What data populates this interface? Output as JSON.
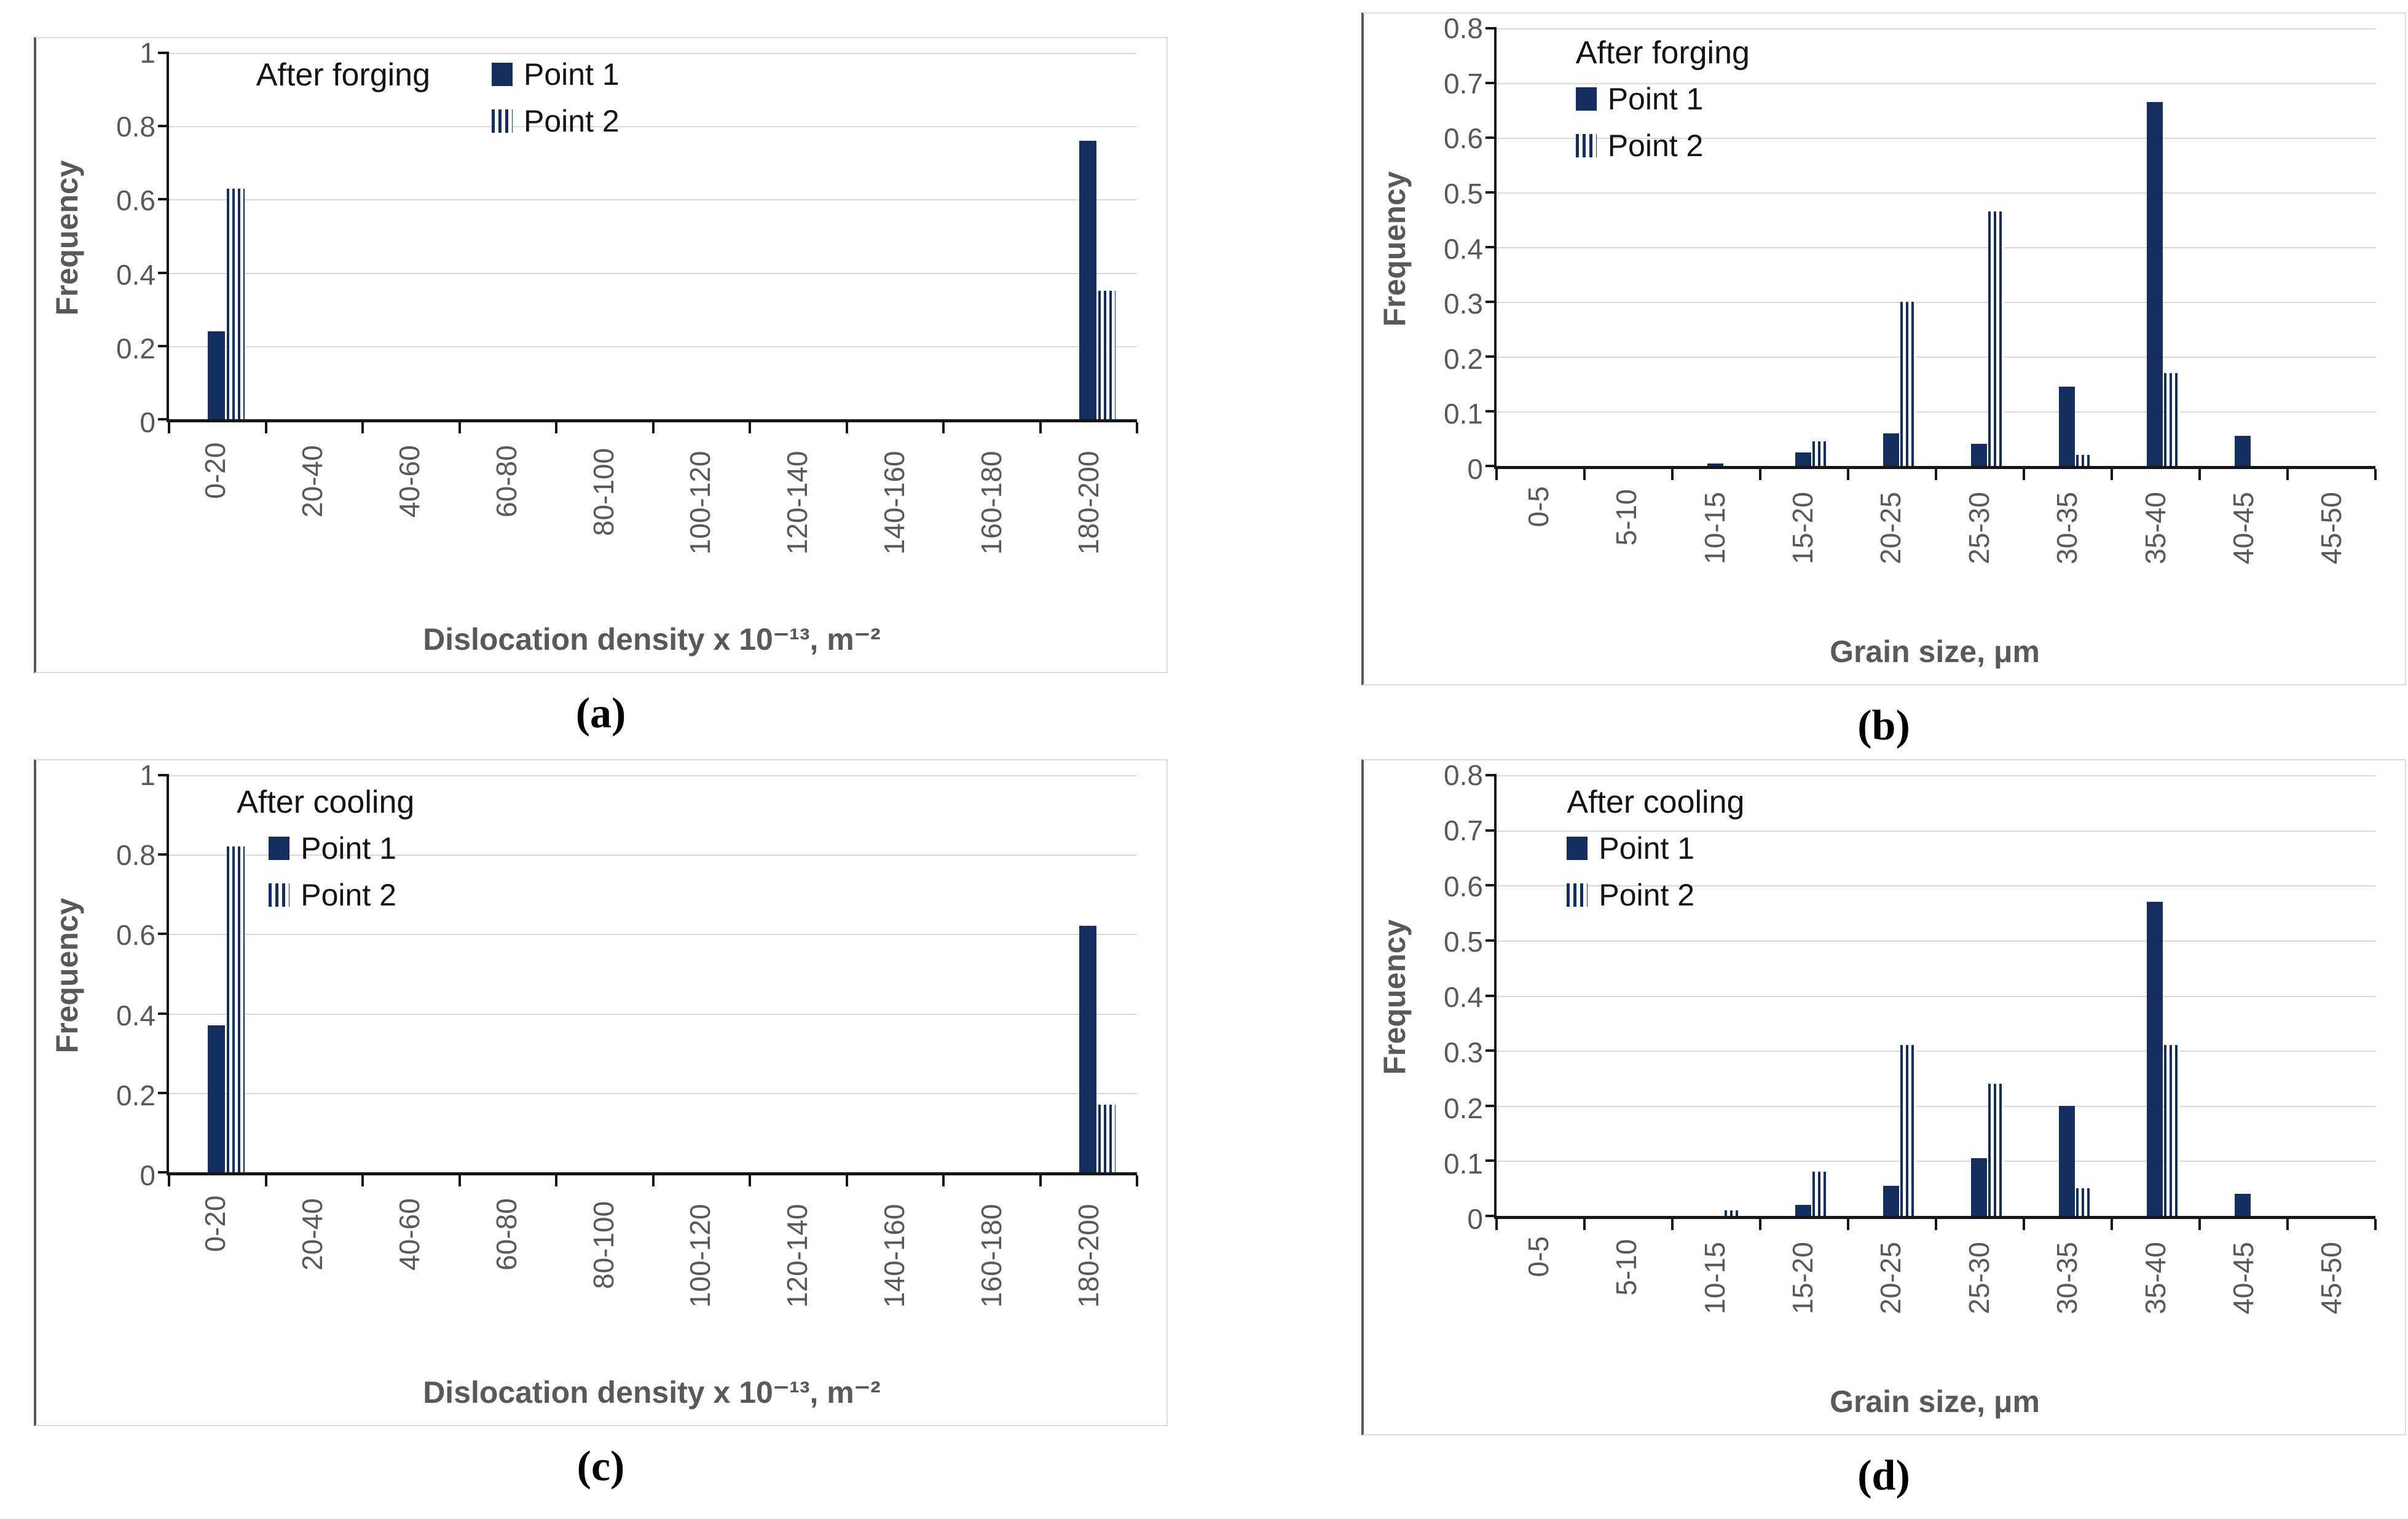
{
  "figure": {
    "background": "#ffffff",
    "y_axis_title": "Frequency"
  },
  "colors": {
    "bar_fill": "#132e5f",
    "gridline": "#d9d9d9",
    "axis_line": "#161616",
    "tick_label": "#595959",
    "axis_title": "#595959",
    "legend_text": "#141414",
    "caption_text": "#000000"
  },
  "chart_data": [
    {
      "type": "bar",
      "panel": "a",
      "caption": "(a)",
      "title": "After forging",
      "ylabel": "Frequency",
      "xlabel": "Dislocation density x 10⁻¹³, m⁻²",
      "ylim": [
        0,
        1
      ],
      "yticks": [
        "1",
        "0.8",
        "0.6",
        "0.4",
        "0.2",
        "0"
      ],
      "grid": "horizontal",
      "legend_position": "top-inline",
      "categories": [
        "0-20",
        "20-40",
        "40-60",
        "60-80",
        "80-100",
        "100-120",
        "120-140",
        "140-160",
        "160-180",
        "180-200"
      ],
      "series": [
        {
          "name": "Point 1",
          "style": "solid",
          "values": [
            0.24,
            0,
            0,
            0,
            0,
            0,
            0,
            0,
            0,
            0.76
          ]
        },
        {
          "name": "Point 2",
          "style": "striped",
          "values": [
            0.63,
            0,
            0,
            0,
            0,
            0,
            0,
            0,
            0,
            0.35
          ]
        }
      ]
    },
    {
      "type": "bar",
      "panel": "b",
      "caption": "(b)",
      "title": "After forging",
      "ylabel": "Frequency",
      "xlabel": "Grain size, μm",
      "ylim": [
        0,
        0.8
      ],
      "yticks": [
        "0.8",
        "0.7",
        "0.6",
        "0.5",
        "0.4",
        "0.3",
        "0.2",
        "0.1",
        "0"
      ],
      "grid": "horizontal",
      "legend_position": "top-left-stacked",
      "categories": [
        "0-5",
        "5-10",
        "10-15",
        "15-20",
        "20-25",
        "25-30",
        "30-35",
        "35-40",
        "40-45",
        "45-50"
      ],
      "series": [
        {
          "name": "Point 1",
          "style": "solid",
          "values": [
            0,
            0,
            0.005,
            0.025,
            0.06,
            0.04,
            0.145,
            0.665,
            0.055,
            0
          ]
        },
        {
          "name": "Point 2",
          "style": "striped",
          "values": [
            0,
            0,
            0,
            0.045,
            0.3,
            0.465,
            0.02,
            0.17,
            0,
            0
          ]
        }
      ]
    },
    {
      "type": "bar",
      "panel": "c",
      "caption": "(c)",
      "title": "After cooling",
      "ylabel": "Frequency",
      "xlabel": "Dislocation density x 10⁻¹³, m⁻²",
      "ylim": [
        0,
        1
      ],
      "yticks": [
        "1",
        "0.8",
        "0.6",
        "0.4",
        "0.2",
        "0"
      ],
      "grid": "horizontal",
      "legend_position": "top-left-stacked",
      "categories": [
        "0-20",
        "20-40",
        "40-60",
        "60-80",
        "80-100",
        "100-120",
        "120-140",
        "140-160",
        "160-180",
        "180-200"
      ],
      "series": [
        {
          "name": "Point 1",
          "style": "solid",
          "values": [
            0.37,
            0,
            0,
            0,
            0,
            0,
            0,
            0,
            0,
            0.62
          ]
        },
        {
          "name": "Point 2",
          "style": "striped",
          "values": [
            0.82,
            0,
            0,
            0,
            0,
            0,
            0,
            0,
            0,
            0.17
          ]
        }
      ]
    },
    {
      "type": "bar",
      "panel": "d",
      "caption": "(d)",
      "title": "After cooling",
      "ylabel": "Frequency",
      "xlabel": "Grain size, μm",
      "ylim": [
        0,
        0.8
      ],
      "yticks": [
        "0.8",
        "0.7",
        "0.6",
        "0.5",
        "0.4",
        "0.3",
        "0.2",
        "0.1",
        "0"
      ],
      "grid": "horizontal",
      "legend_position": "top-left-stacked",
      "categories": [
        "0-5",
        "5-10",
        "10-15",
        "15-20",
        "20-25",
        "25-30",
        "30-35",
        "35-40",
        "40-45",
        "45-50"
      ],
      "series": [
        {
          "name": "Point 1",
          "style": "solid",
          "values": [
            0,
            0,
            0,
            0.02,
            0.055,
            0.105,
            0.2,
            0.57,
            0.04,
            0
          ]
        },
        {
          "name": "Point 2",
          "style": "striped",
          "values": [
            0,
            0,
            0.01,
            0.08,
            0.31,
            0.24,
            0.05,
            0.31,
            0,
            0
          ]
        }
      ]
    }
  ]
}
